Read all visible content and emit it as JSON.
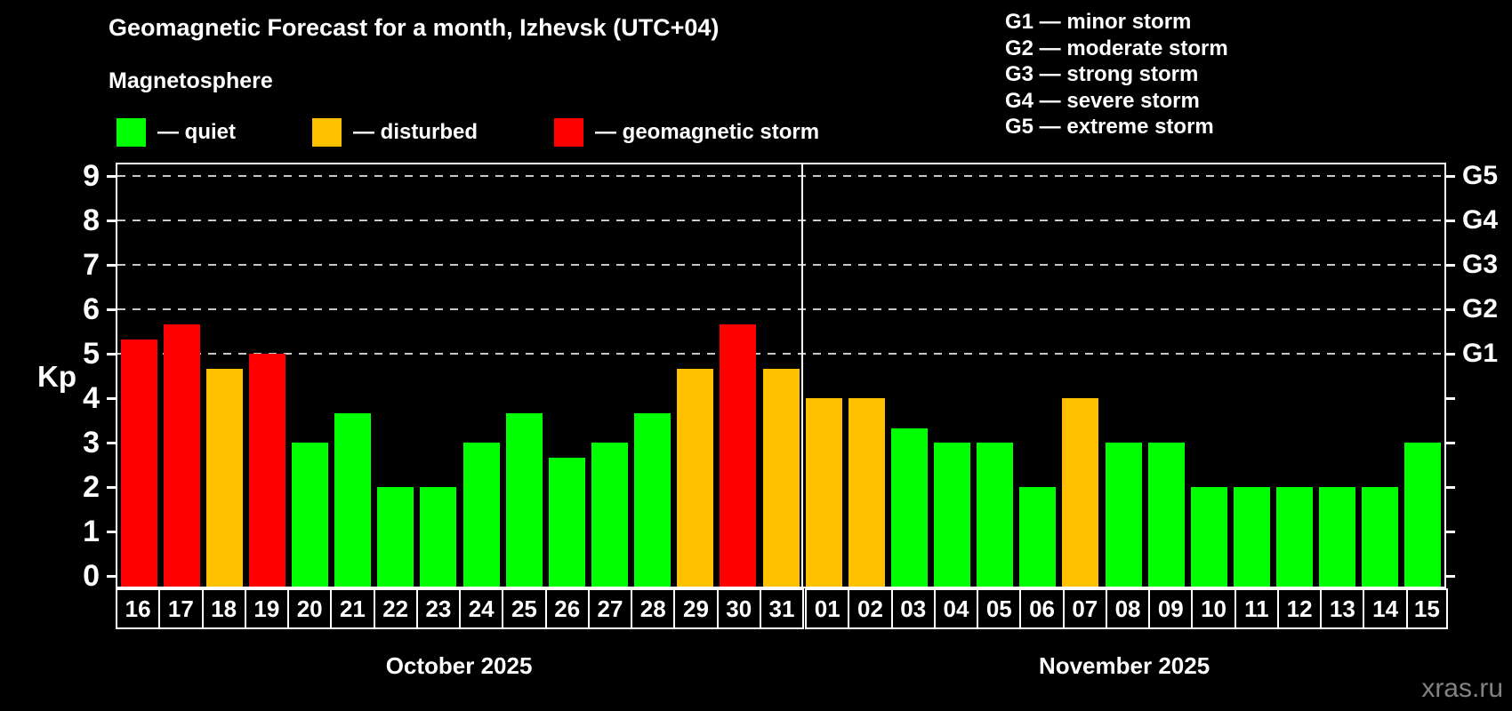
{
  "header": {
    "title": "Geomagnetic Forecast for a month, Izhevsk (UTC+04)",
    "subtitle": "Magnetosphere",
    "legend_items": [
      {
        "name": "quiet",
        "label": "— quiet",
        "color": "#00ff00"
      },
      {
        "name": "disturbed",
        "label": "— disturbed",
        "color": "#ffc000"
      },
      {
        "name": "storm",
        "label": "— geomagnetic storm",
        "color": "#ff0000"
      }
    ],
    "storm_scale": [
      "G1 — minor storm",
      "G2 — moderate storm",
      "G3 — strong storm",
      "G4 — severe storm",
      "G5 — extreme storm"
    ]
  },
  "watermark": "xras.ru",
  "chart_data": {
    "type": "bar",
    "title": "Geomagnetic Forecast for a month, Izhevsk (UTC+04)",
    "subtitle": "Magnetosphere",
    "ylabel": "Kp",
    "ylim": [
      0,
      9
    ],
    "yticks": [
      0,
      1,
      2,
      3,
      4,
      5,
      6,
      7,
      8,
      9
    ],
    "grid": "dashed horizontal lines at Kp 5–9 only",
    "legend_position": "top",
    "right_axis": [
      {
        "kp": 5,
        "label": "G1"
      },
      {
        "kp": 6,
        "label": "G2"
      },
      {
        "kp": 7,
        "label": "G3"
      },
      {
        "kp": 8,
        "label": "G4"
      },
      {
        "kp": 9,
        "label": "G5"
      }
    ],
    "level_colors": {
      "quiet": "#00ff00",
      "disturbed": "#ffc000",
      "storm": "#ff0000"
    },
    "months": [
      {
        "label": "October 2025",
        "days": [
          "16",
          "17",
          "18",
          "19",
          "20",
          "21",
          "22",
          "23",
          "24",
          "25",
          "26",
          "27",
          "28",
          "29",
          "30",
          "31"
        ]
      },
      {
        "label": "November 2025",
        "days": [
          "01",
          "02",
          "03",
          "04",
          "05",
          "06",
          "07",
          "08",
          "09",
          "10",
          "11",
          "12",
          "13",
          "14",
          "15"
        ]
      }
    ],
    "bars": [
      {
        "day": "16",
        "kp": 5.33,
        "level": "storm"
      },
      {
        "day": "17",
        "kp": 5.67,
        "level": "storm"
      },
      {
        "day": "18",
        "kp": 4.67,
        "level": "disturbed"
      },
      {
        "day": "19",
        "kp": 5.0,
        "level": "storm"
      },
      {
        "day": "20",
        "kp": 3.0,
        "level": "quiet"
      },
      {
        "day": "21",
        "kp": 3.67,
        "level": "quiet"
      },
      {
        "day": "22",
        "kp": 2.0,
        "level": "quiet"
      },
      {
        "day": "23",
        "kp": 2.0,
        "level": "quiet"
      },
      {
        "day": "24",
        "kp": 3.0,
        "level": "quiet"
      },
      {
        "day": "25",
        "kp": 3.67,
        "level": "quiet"
      },
      {
        "day": "26",
        "kp": 2.67,
        "level": "quiet"
      },
      {
        "day": "27",
        "kp": 3.0,
        "level": "quiet"
      },
      {
        "day": "28",
        "kp": 3.67,
        "level": "quiet"
      },
      {
        "day": "29",
        "kp": 4.67,
        "level": "disturbed"
      },
      {
        "day": "30",
        "kp": 5.67,
        "level": "storm"
      },
      {
        "day": "31",
        "kp": 4.67,
        "level": "disturbed"
      },
      {
        "day": "01",
        "kp": 4.0,
        "level": "disturbed"
      },
      {
        "day": "02",
        "kp": 4.0,
        "level": "disturbed"
      },
      {
        "day": "03",
        "kp": 3.33,
        "level": "quiet"
      },
      {
        "day": "04",
        "kp": 3.0,
        "level": "quiet"
      },
      {
        "day": "05",
        "kp": 3.0,
        "level": "quiet"
      },
      {
        "day": "06",
        "kp": 2.0,
        "level": "quiet"
      },
      {
        "day": "07",
        "kp": 4.0,
        "level": "disturbed"
      },
      {
        "day": "08",
        "kp": 3.0,
        "level": "quiet"
      },
      {
        "day": "09",
        "kp": 3.0,
        "level": "quiet"
      },
      {
        "day": "10",
        "kp": 2.0,
        "level": "quiet"
      },
      {
        "day": "11",
        "kp": 2.0,
        "level": "quiet"
      },
      {
        "day": "12",
        "kp": 2.0,
        "level": "quiet"
      },
      {
        "day": "13",
        "kp": 2.0,
        "level": "quiet"
      },
      {
        "day": "14",
        "kp": 2.0,
        "level": "quiet"
      },
      {
        "day": "15",
        "kp": 3.0,
        "level": "quiet"
      }
    ]
  }
}
